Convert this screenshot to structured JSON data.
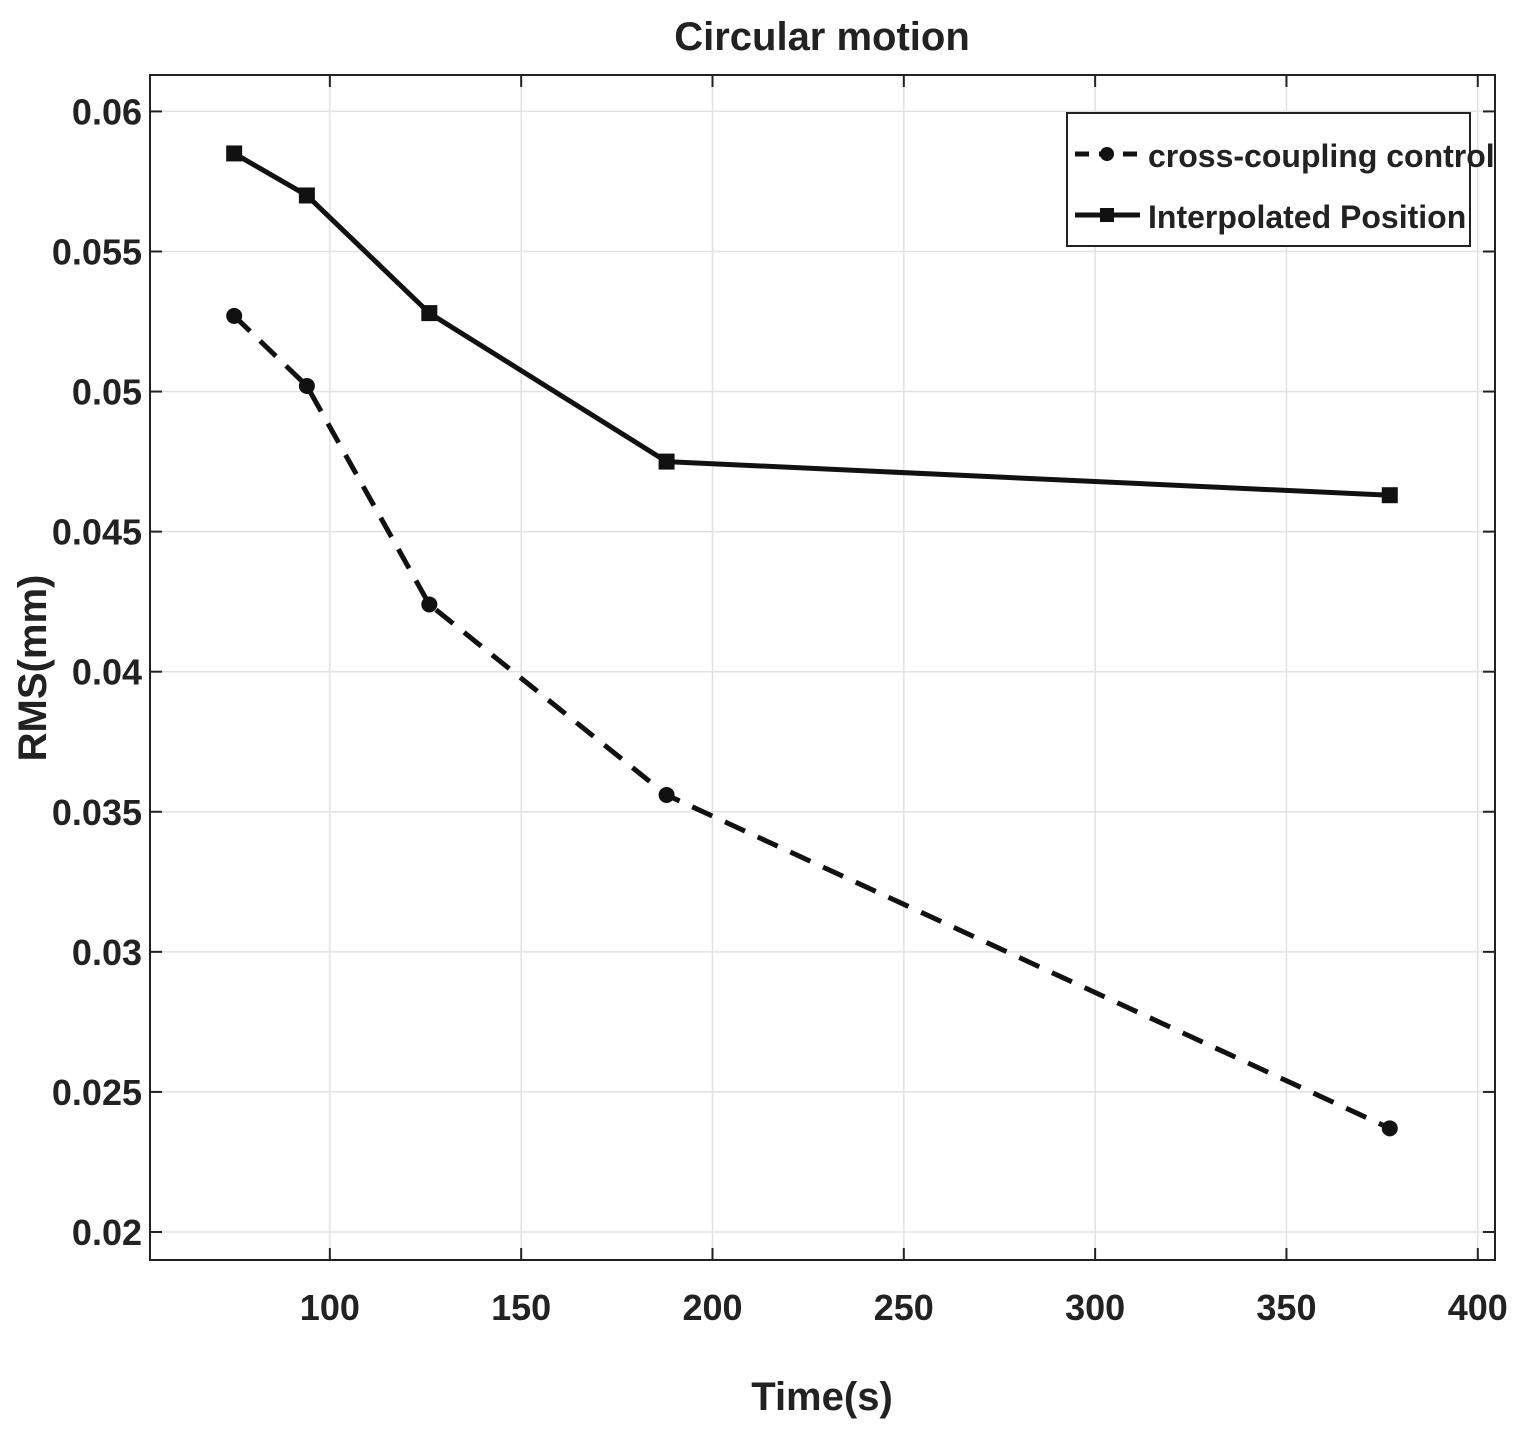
{
  "chart_data": {
    "type": "line",
    "title": "Circular motion",
    "xlabel": "Time(s)",
    "ylabel": "RMS(mm)",
    "xlim": [
      53,
      404.5
    ],
    "ylim": [
      0.019,
      0.0613
    ],
    "xticks": [
      100,
      150,
      200,
      250,
      300,
      350,
      400
    ],
    "yticks": [
      0.02,
      0.025,
      0.03,
      0.035,
      0.04,
      0.045,
      0.05,
      0.055,
      0.06
    ],
    "xtick_labels": [
      "100",
      "150",
      "200",
      "250",
      "300",
      "350",
      "400"
    ],
    "ytick_labels": [
      "0.02",
      "0.025",
      "0.03",
      "0.035",
      "0.04",
      "0.045",
      "0.05",
      "0.055",
      "0.06"
    ],
    "grid": true,
    "legend_position": "top-right",
    "x": [
      75,
      94,
      126,
      188,
      377
    ],
    "series": [
      {
        "name": "cross-coupling control",
        "style": "dashed",
        "marker": "circle",
        "color": "#111111",
        "values": [
          0.0527,
          0.0502,
          0.0424,
          0.0356,
          0.0237
        ]
      },
      {
        "name": "Interpolated Position",
        "style": "solid",
        "marker": "square",
        "color": "#111111",
        "values": [
          0.0585,
          0.057,
          0.0528,
          0.0475,
          0.0463
        ]
      }
    ]
  }
}
